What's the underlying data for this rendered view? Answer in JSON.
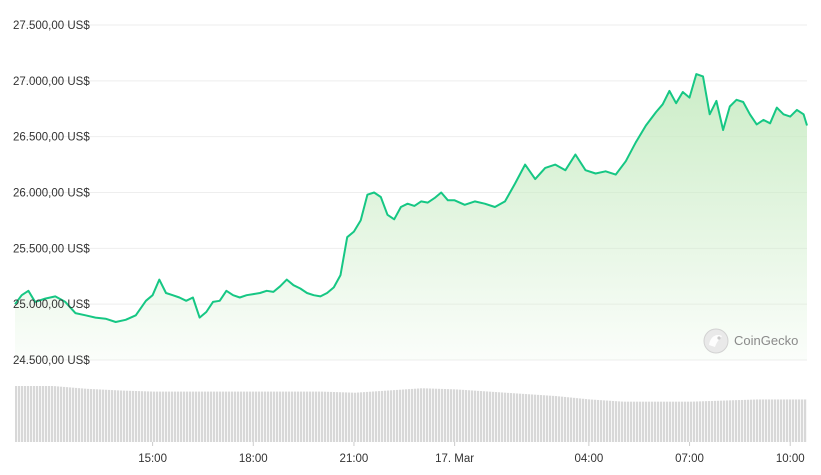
{
  "chart_data": {
    "type": "area",
    "y_currency_suffix": " US$",
    "y_ticks": [
      24500,
      25000,
      25500,
      26000,
      26500,
      27000,
      27500
    ],
    "y_tick_labels": [
      "24.500,00 US$",
      "25.000,00 US$",
      "25.500,00 US$",
      "26.000,00 US$",
      "26.500,00 US$",
      "27.000,00 US$",
      "27.500,00 US$"
    ],
    "ylim": [
      24500,
      27500
    ],
    "x_tick_labels": [
      "15:00",
      "18:00",
      "21:00",
      "17. Mar",
      "04:00",
      "07:00",
      "10:00"
    ],
    "x_tick_hours": [
      15,
      18,
      21,
      24,
      28,
      31,
      34
    ],
    "x_range_hours": [
      10.9,
      34.5
    ],
    "grid": true,
    "line_color": "#16c784",
    "fill_color": "#c9ecc4",
    "volume_color": "#d8d8d8",
    "series": [
      {
        "x_hours": [
          10.9,
          11.1,
          11.3,
          11.5,
          11.8,
          12.1,
          12.4,
          12.7,
          13.0,
          13.3,
          13.6,
          13.9,
          14.2,
          14.5,
          14.8,
          15.0,
          15.2,
          15.4,
          15.6,
          15.8,
          16.0,
          16.2,
          16.4,
          16.6,
          16.8,
          17.0,
          17.2,
          17.4,
          17.6,
          17.8,
          18.0,
          18.2,
          18.4,
          18.6,
          18.8,
          19.0,
          19.2,
          19.4,
          19.6,
          19.8,
          20.0,
          20.2,
          20.4,
          20.6,
          20.8,
          21.0,
          21.2,
          21.4,
          21.6,
          21.8,
          22.0,
          22.2,
          22.4,
          22.6,
          22.8,
          23.0,
          23.2,
          23.4,
          23.6,
          23.8,
          24.0,
          24.3,
          24.6,
          24.9,
          25.2,
          25.5,
          25.8,
          26.1,
          26.4,
          26.7,
          27.0,
          27.3,
          27.6,
          27.9,
          28.2,
          28.5,
          28.8,
          29.1,
          29.4,
          29.7,
          30.0,
          30.2,
          30.4,
          30.6,
          30.8,
          31.0,
          31.2,
          31.4,
          31.6,
          31.8,
          32.0,
          32.2,
          32.4,
          32.6,
          32.8,
          33.0,
          33.2,
          33.4,
          33.6,
          33.8,
          34.0,
          34.2,
          34.4,
          34.5
        ],
        "values": [
          25000,
          25080,
          25120,
          25020,
          25050,
          25070,
          25020,
          24920,
          24900,
          24880,
          24870,
          24840,
          24860,
          24900,
          25030,
          25080,
          25220,
          25100,
          25080,
          25060,
          25030,
          25060,
          24880,
          24930,
          25020,
          25030,
          25120,
          25080,
          25060,
          25080,
          25090,
          25100,
          25120,
          25110,
          25160,
          25220,
          25170,
          25140,
          25100,
          25080,
          25070,
          25100,
          25150,
          25260,
          25600,
          25650,
          25750,
          25980,
          26000,
          25960,
          25800,
          25760,
          25870,
          25900,
          25880,
          25920,
          25910,
          25950,
          26000,
          25930,
          25930,
          25890,
          25920,
          25900,
          25870,
          25920,
          26080,
          26250,
          26120,
          26220,
          26250,
          26200,
          26340,
          26200,
          26170,
          26190,
          26160,
          26280,
          26450,
          26600,
          26720,
          26790,
          26910,
          26800,
          26900,
          26850,
          27060,
          27040,
          26700,
          26820,
          26560,
          26770,
          26830,
          26810,
          26700,
          26610,
          26650,
          26620,
          26760,
          26700,
          26680,
          26740,
          26700,
          26600
        ]
      }
    ],
    "volume_x_hours": [
      10.9,
      12.0,
      13.0,
      14.0,
      15.0,
      16.0,
      17.0,
      18.0,
      19.0,
      20.0,
      21.0,
      22.0,
      23.0,
      24.0,
      25.0,
      26.0,
      27.0,
      28.0,
      29.0,
      30.0,
      31.0,
      32.0,
      33.0,
      34.0,
      34.5
    ],
    "volume_relative": [
      1.0,
      1.0,
      0.95,
      0.92,
      0.9,
      0.9,
      0.9,
      0.9,
      0.9,
      0.9,
      0.88,
      0.92,
      0.96,
      0.94,
      0.9,
      0.86,
      0.82,
      0.76,
      0.72,
      0.72,
      0.72,
      0.74,
      0.76,
      0.76,
      0.76
    ]
  },
  "watermark": {
    "text": "CoinGecko"
  }
}
